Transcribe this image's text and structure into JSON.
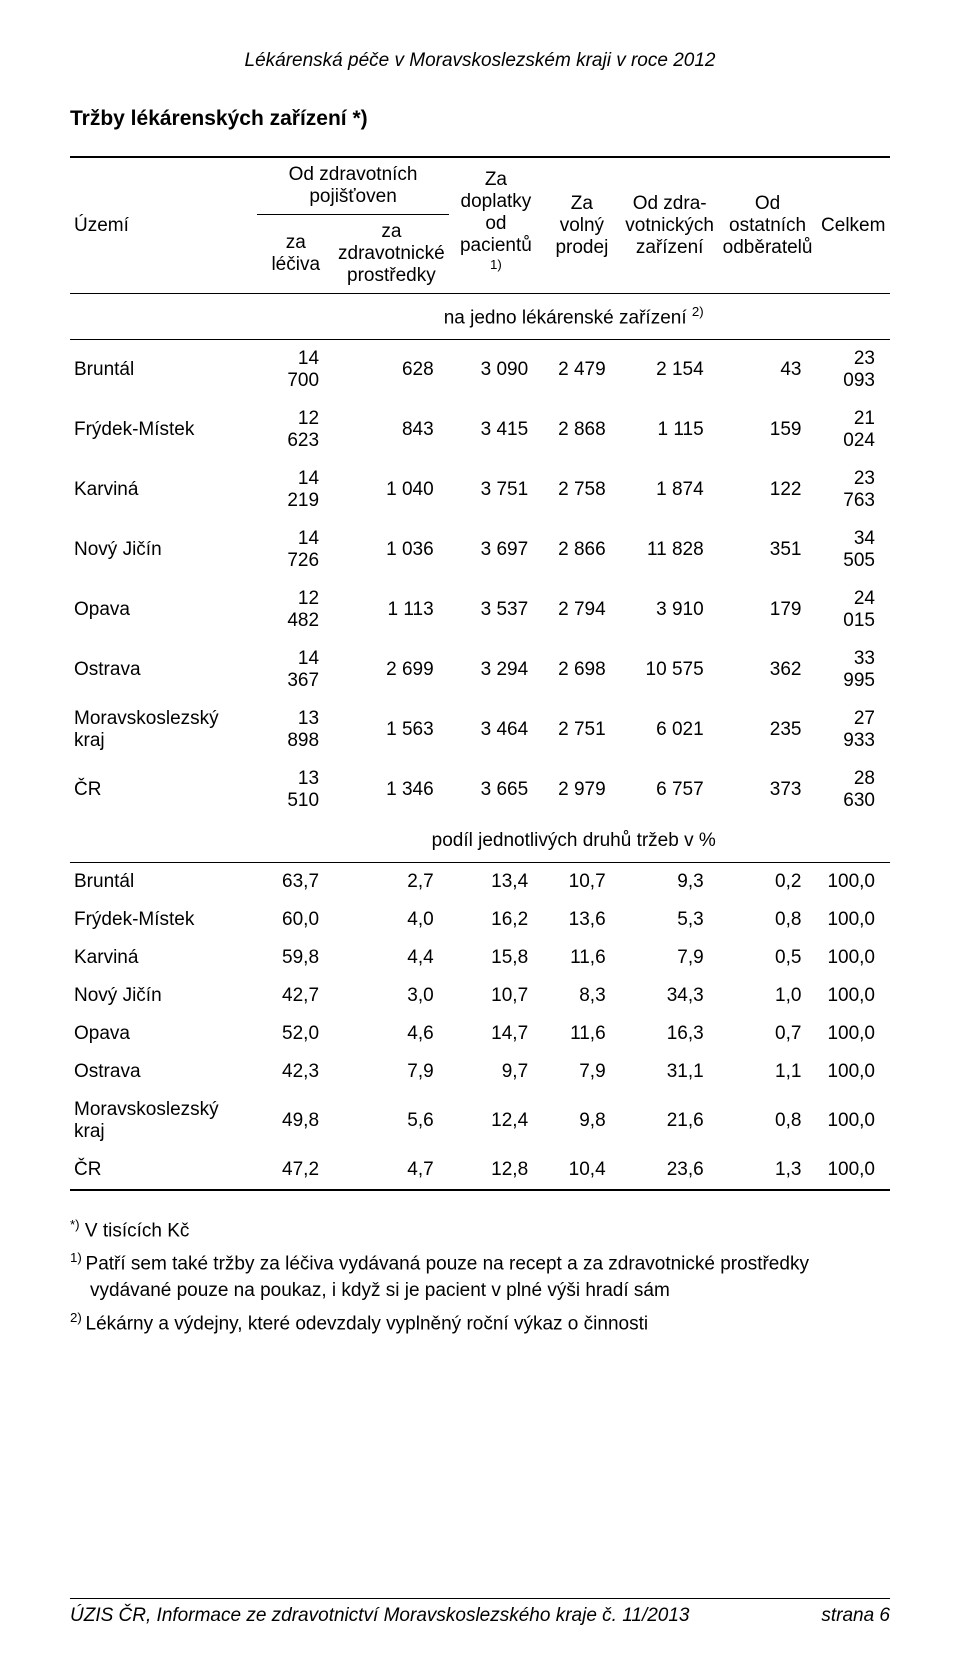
{
  "doc_header": "Lékárenská péče v Moravskoslezském kraji v roce 2012",
  "table_title": "Tržby lékárenských zařízení *)",
  "columns": {
    "uzemi": "Území",
    "pojistoven_group": "Od zdravotních pojišťoven",
    "za_leciva": "za léčiva",
    "za_zdrav_prostredky": "za zdravotnické prostředky",
    "za_doplatky": "Za doplatky od pacientů ",
    "za_doplatky_sup": "1)",
    "za_volny": "Za volný prodej",
    "od_zdrav_zarizeni": "Od zdra-votnických zařízení",
    "od_ostatnich": "Od ostatních odběratelů",
    "celkem": "Celkem"
  },
  "section1_label": "na jedno lékárenské zařízení ",
  "section1_sup": "2)",
  "section2_label": "podíl jednotlivých druhů tržeb v %",
  "rows1": [
    {
      "label": "Bruntál",
      "v": [
        "14 700",
        "628",
        "3 090",
        "2 479",
        "2 154",
        "43",
        "23 093"
      ]
    },
    {
      "label": "Frýdek-Místek",
      "v": [
        "12 623",
        "843",
        "3 415",
        "2 868",
        "1 115",
        "159",
        "21 024"
      ]
    },
    {
      "label": "Karviná",
      "v": [
        "14 219",
        "1 040",
        "3 751",
        "2 758",
        "1 874",
        "122",
        "23 763"
      ]
    },
    {
      "label": "Nový Jičín",
      "v": [
        "14 726",
        "1 036",
        "3 697",
        "2 866",
        "11 828",
        "351",
        "34 505"
      ]
    },
    {
      "label": "Opava",
      "v": [
        "12 482",
        "1 113",
        "3 537",
        "2 794",
        "3 910",
        "179",
        "24 015"
      ]
    },
    {
      "label": "Ostrava",
      "v": [
        "14 367",
        "2 699",
        "3 294",
        "2 698",
        "10 575",
        "362",
        "33 995"
      ]
    },
    {
      "label": "Moravskoslezský kraj",
      "v": [
        "13 898",
        "1 563",
        "3 464",
        "2 751",
        "6 021",
        "235",
        "27 933"
      ]
    },
    {
      "label": "ČR",
      "v": [
        "13 510",
        "1 346",
        "3 665",
        "2 979",
        "6 757",
        "373",
        "28 630"
      ]
    }
  ],
  "rows2": [
    {
      "label": "Bruntál",
      "v": [
        "63,7",
        "2,7",
        "13,4",
        "10,7",
        "9,3",
        "0,2",
        "100,0"
      ]
    },
    {
      "label": "Frýdek-Místek",
      "v": [
        "60,0",
        "4,0",
        "16,2",
        "13,6",
        "5,3",
        "0,8",
        "100,0"
      ]
    },
    {
      "label": "Karviná",
      "v": [
        "59,8",
        "4,4",
        "15,8",
        "11,6",
        "7,9",
        "0,5",
        "100,0"
      ]
    },
    {
      "label": "Nový Jičín",
      "v": [
        "42,7",
        "3,0",
        "10,7",
        "8,3",
        "34,3",
        "1,0",
        "100,0"
      ]
    },
    {
      "label": "Opava",
      "v": [
        "52,0",
        "4,6",
        "14,7",
        "11,6",
        "16,3",
        "0,7",
        "100,0"
      ]
    },
    {
      "label": "Ostrava",
      "v": [
        "42,3",
        "7,9",
        "9,7",
        "7,9",
        "31,1",
        "1,1",
        "100,0"
      ]
    },
    {
      "label": "Moravskoslezský kraj",
      "v": [
        "49,8",
        "5,6",
        "12,4",
        "9,8",
        "21,6",
        "0,8",
        "100,0"
      ]
    },
    {
      "label": "ČR",
      "v": [
        "47,2",
        "4,7",
        "12,8",
        "10,4",
        "23,6",
        "1,3",
        "100,0"
      ]
    }
  ],
  "footnotes": {
    "star_sup": "*)",
    "star": " V tisících Kč",
    "one_sup": "1) ",
    "one": "Patří sem také tržby za léčiva vydávaná pouze na recept a za zdravotnické prostředky vydávané pouze na poukaz, i když si je pacient v plné výši hradí sám",
    "two_sup": "2) ",
    "two": "Lékárny a výdejny, které odevzdaly vyplněný roční výkaz o činnosti"
  },
  "footer": {
    "left": "ÚZIS ČR, Informace ze zdravotnictví Moravskoslezského kraje č. 11/2013",
    "right": "strana 6"
  },
  "col_widths": [
    "24%",
    "10%",
    "12%",
    "12%",
    "10%",
    "12%",
    "11%",
    "9%"
  ]
}
